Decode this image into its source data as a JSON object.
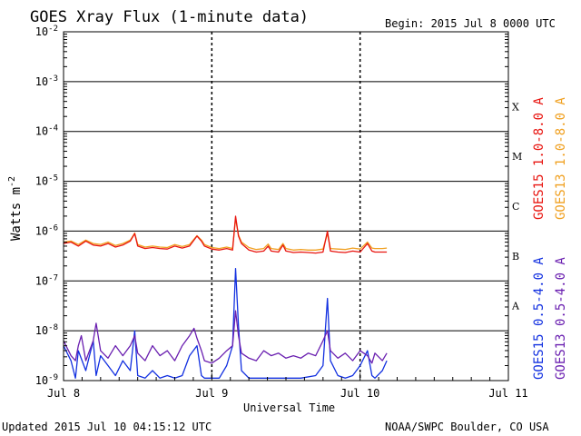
{
  "header": {
    "title": "GOES Xray Flux (1-minute data)",
    "begin_label": "Begin:  2015 Jul 8 0000 UTC"
  },
  "footer": {
    "updated": "Updated 2015 Jul 10 04:15:12 UTC",
    "credit": "NOAA/SWPC Boulder, CO USA"
  },
  "colors": {
    "goes15_long": "#e8140f",
    "goes13_long": "#f0a020",
    "goes15_short": "#1230e0",
    "goes13_short": "#6a1fb0",
    "axes": "#000000"
  },
  "chart_data": {
    "type": "line",
    "title": "GOES Xray Flux (1-minute data)",
    "xlabel": "Universal Time",
    "ylabel": "Watts m",
    "ylabel_sup": "-2",
    "yscale": "log",
    "ylim": [
      1e-09,
      0.01
    ],
    "y_ticks": [
      {
        "exp": -2,
        "label_base": "10",
        "label_exp": "-2"
      },
      {
        "exp": -3,
        "label_base": "10",
        "label_exp": "-3"
      },
      {
        "exp": -4,
        "label_base": "10",
        "label_exp": "-4"
      },
      {
        "exp": -5,
        "label_base": "10",
        "label_exp": "-5"
      },
      {
        "exp": -6,
        "label_base": "10",
        "label_exp": "-6"
      },
      {
        "exp": -7,
        "label_base": "10",
        "label_exp": "-7"
      },
      {
        "exp": -8,
        "label_base": "10",
        "label_exp": "-8"
      },
      {
        "exp": -9,
        "label_base": "10",
        "label_exp": "-9"
      }
    ],
    "xlim_days": [
      0,
      3
    ],
    "x_ticks": [
      {
        "day": 0,
        "label": "Jul 8"
      },
      {
        "day": 1,
        "label": "Jul 9"
      },
      {
        "day": 2,
        "label": "Jul 10"
      },
      {
        "day": 3,
        "label": "Jul 11"
      }
    ],
    "flare_classes": [
      {
        "label": "X",
        "exp": -3.5
      },
      {
        "label": "M",
        "exp": -4.5
      },
      {
        "label": "C",
        "exp": -5.5
      },
      {
        "label": "B",
        "exp": -6.5
      },
      {
        "label": "A",
        "exp": -7.5
      }
    ],
    "series": [
      {
        "name": "GOES15 1.0-8.0 A",
        "color": "#e8140f",
        "points": [
          [
            0.0,
            -6.25
          ],
          [
            0.05,
            -6.22
          ],
          [
            0.1,
            -6.3
          ],
          [
            0.15,
            -6.2
          ],
          [
            0.2,
            -6.28
          ],
          [
            0.25,
            -6.3
          ],
          [
            0.3,
            -6.25
          ],
          [
            0.35,
            -6.32
          ],
          [
            0.4,
            -6.28
          ],
          [
            0.45,
            -6.2
          ],
          [
            0.48,
            -6.05
          ],
          [
            0.5,
            -6.3
          ],
          [
            0.55,
            -6.35
          ],
          [
            0.6,
            -6.33
          ],
          [
            0.65,
            -6.35
          ],
          [
            0.7,
            -6.36
          ],
          [
            0.75,
            -6.3
          ],
          [
            0.8,
            -6.34
          ],
          [
            0.85,
            -6.3
          ],
          [
            0.9,
            -6.1
          ],
          [
            0.93,
            -6.2
          ],
          [
            0.95,
            -6.3
          ],
          [
            1.0,
            -6.36
          ],
          [
            1.05,
            -6.38
          ],
          [
            1.1,
            -6.35
          ],
          [
            1.14,
            -6.38
          ],
          [
            1.16,
            -5.7
          ],
          [
            1.18,
            -6.1
          ],
          [
            1.2,
            -6.25
          ],
          [
            1.25,
            -6.38
          ],
          [
            1.3,
            -6.42
          ],
          [
            1.35,
            -6.4
          ],
          [
            1.38,
            -6.3
          ],
          [
            1.4,
            -6.4
          ],
          [
            1.45,
            -6.42
          ],
          [
            1.48,
            -6.28
          ],
          [
            1.5,
            -6.4
          ],
          [
            1.55,
            -6.43
          ],
          [
            1.6,
            -6.42
          ],
          [
            1.65,
            -6.43
          ],
          [
            1.7,
            -6.44
          ],
          [
            1.75,
            -6.42
          ],
          [
            1.78,
            -6.0
          ],
          [
            1.8,
            -6.4
          ],
          [
            1.85,
            -6.42
          ],
          [
            1.9,
            -6.43
          ],
          [
            1.95,
            -6.4
          ],
          [
            2.0,
            -6.42
          ],
          [
            2.05,
            -6.25
          ],
          [
            2.08,
            -6.4
          ],
          [
            2.1,
            -6.42
          ],
          [
            2.15,
            -6.42
          ],
          [
            2.18,
            -6.42
          ]
        ]
      },
      {
        "name": "GOES13 1.0-8.0 A",
        "color": "#f0a020",
        "points": [
          [
            0.0,
            -6.22
          ],
          [
            0.05,
            -6.2
          ],
          [
            0.1,
            -6.27
          ],
          [
            0.15,
            -6.18
          ],
          [
            0.2,
            -6.25
          ],
          [
            0.25,
            -6.27
          ],
          [
            0.3,
            -6.22
          ],
          [
            0.35,
            -6.29
          ],
          [
            0.4,
            -6.25
          ],
          [
            0.45,
            -6.18
          ],
          [
            0.48,
            -6.04
          ],
          [
            0.5,
            -6.27
          ],
          [
            0.55,
            -6.32
          ],
          [
            0.6,
            -6.3
          ],
          [
            0.65,
            -6.32
          ],
          [
            0.7,
            -6.33
          ],
          [
            0.75,
            -6.27
          ],
          [
            0.8,
            -6.31
          ],
          [
            0.85,
            -6.27
          ],
          [
            0.9,
            -6.09
          ],
          [
            0.93,
            -6.18
          ],
          [
            0.95,
            -6.27
          ],
          [
            1.0,
            -6.33
          ],
          [
            1.05,
            -6.35
          ],
          [
            1.1,
            -6.32
          ],
          [
            1.14,
            -6.35
          ],
          [
            1.16,
            -5.75
          ],
          [
            1.18,
            -6.08
          ],
          [
            1.2,
            -6.22
          ],
          [
            1.25,
            -6.33
          ],
          [
            1.3,
            -6.37
          ],
          [
            1.35,
            -6.35
          ],
          [
            1.38,
            -6.26
          ],
          [
            1.4,
            -6.35
          ],
          [
            1.45,
            -6.37
          ],
          [
            1.48,
            -6.25
          ],
          [
            1.5,
            -6.35
          ],
          [
            1.55,
            -6.38
          ],
          [
            1.6,
            -6.37
          ],
          [
            1.65,
            -6.38
          ],
          [
            1.7,
            -6.38
          ],
          [
            1.75,
            -6.36
          ],
          [
            1.78,
            -6.05
          ],
          [
            1.8,
            -6.35
          ],
          [
            1.85,
            -6.36
          ],
          [
            1.9,
            -6.37
          ],
          [
            1.95,
            -6.34
          ],
          [
            2.0,
            -6.36
          ],
          [
            2.05,
            -6.22
          ],
          [
            2.08,
            -6.34
          ],
          [
            2.1,
            -6.35
          ],
          [
            2.15,
            -6.35
          ],
          [
            2.18,
            -6.34
          ]
        ]
      },
      {
        "name": "GOES15 0.5-4.0 A",
        "color": "#1230e0",
        "points": [
          [
            0.0,
            -8.3
          ],
          [
            0.05,
            -8.6
          ],
          [
            0.08,
            -8.95
          ],
          [
            0.1,
            -8.4
          ],
          [
            0.15,
            -8.8
          ],
          [
            0.2,
            -8.2
          ],
          [
            0.22,
            -8.9
          ],
          [
            0.25,
            -8.5
          ],
          [
            0.3,
            -8.7
          ],
          [
            0.35,
            -8.9
          ],
          [
            0.4,
            -8.6
          ],
          [
            0.45,
            -8.8
          ],
          [
            0.48,
            -8.0
          ],
          [
            0.5,
            -8.9
          ],
          [
            0.55,
            -8.95
          ],
          [
            0.6,
            -8.8
          ],
          [
            0.65,
            -8.95
          ],
          [
            0.7,
            -8.9
          ],
          [
            0.75,
            -8.95
          ],
          [
            0.8,
            -8.9
          ],
          [
            0.85,
            -8.5
          ],
          [
            0.9,
            -8.3
          ],
          [
            0.93,
            -8.9
          ],
          [
            0.95,
            -8.95
          ],
          [
            1.0,
            -8.95
          ],
          [
            1.05,
            -8.95
          ],
          [
            1.1,
            -8.7
          ],
          [
            1.14,
            -8.3
          ],
          [
            1.16,
            -6.75
          ],
          [
            1.18,
            -7.9
          ],
          [
            1.2,
            -8.8
          ],
          [
            1.25,
            -8.95
          ],
          [
            1.3,
            -8.95
          ],
          [
            1.4,
            -8.95
          ],
          [
            1.5,
            -8.95
          ],
          [
            1.6,
            -8.95
          ],
          [
            1.7,
            -8.9
          ],
          [
            1.75,
            -8.7
          ],
          [
            1.78,
            -7.35
          ],
          [
            1.8,
            -8.6
          ],
          [
            1.85,
            -8.9
          ],
          [
            1.9,
            -8.95
          ],
          [
            1.95,
            -8.9
          ],
          [
            2.0,
            -8.7
          ],
          [
            2.05,
            -8.4
          ],
          [
            2.08,
            -8.9
          ],
          [
            2.1,
            -8.95
          ],
          [
            2.15,
            -8.8
          ],
          [
            2.18,
            -8.6
          ]
        ]
      },
      {
        "name": "GOES13 0.5-4.0 A",
        "color": "#6a1fb0",
        "points": [
          [
            0.0,
            -8.2
          ],
          [
            0.05,
            -8.5
          ],
          [
            0.08,
            -8.6
          ],
          [
            0.1,
            -8.3
          ],
          [
            0.12,
            -8.1
          ],
          [
            0.15,
            -8.6
          ],
          [
            0.2,
            -8.2
          ],
          [
            0.22,
            -7.85
          ],
          [
            0.25,
            -8.4
          ],
          [
            0.3,
            -8.55
          ],
          [
            0.35,
            -8.3
          ],
          [
            0.4,
            -8.5
          ],
          [
            0.45,
            -8.3
          ],
          [
            0.48,
            -8.1
          ],
          [
            0.5,
            -8.45
          ],
          [
            0.55,
            -8.6
          ],
          [
            0.6,
            -8.3
          ],
          [
            0.65,
            -8.5
          ],
          [
            0.7,
            -8.4
          ],
          [
            0.75,
            -8.6
          ],
          [
            0.8,
            -8.3
          ],
          [
            0.85,
            -8.1
          ],
          [
            0.88,
            -7.95
          ],
          [
            0.9,
            -8.15
          ],
          [
            0.93,
            -8.4
          ],
          [
            0.95,
            -8.6
          ],
          [
            1.0,
            -8.65
          ],
          [
            1.05,
            -8.55
          ],
          [
            1.1,
            -8.4
          ],
          [
            1.14,
            -8.3
          ],
          [
            1.16,
            -7.6
          ],
          [
            1.18,
            -8.1
          ],
          [
            1.2,
            -8.45
          ],
          [
            1.25,
            -8.55
          ],
          [
            1.3,
            -8.6
          ],
          [
            1.35,
            -8.4
          ],
          [
            1.4,
            -8.5
          ],
          [
            1.45,
            -8.45
          ],
          [
            1.5,
            -8.55
          ],
          [
            1.55,
            -8.5
          ],
          [
            1.6,
            -8.55
          ],
          [
            1.65,
            -8.45
          ],
          [
            1.7,
            -8.5
          ],
          [
            1.75,
            -8.2
          ],
          [
            1.78,
            -8.0
          ],
          [
            1.8,
            -8.4
          ],
          [
            1.85,
            -8.55
          ],
          [
            1.9,
            -8.45
          ],
          [
            1.95,
            -8.6
          ],
          [
            2.0,
            -8.4
          ],
          [
            2.05,
            -8.5
          ],
          [
            2.08,
            -8.65
          ],
          [
            2.1,
            -8.45
          ],
          [
            2.15,
            -8.6
          ],
          [
            2.18,
            -8.45
          ]
        ]
      }
    ],
    "legend_placement": "right side, vertical"
  }
}
